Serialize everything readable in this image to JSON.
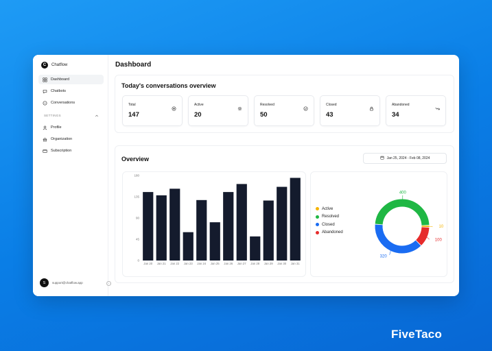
{
  "app": {
    "name": "Chatflow",
    "logo_letter": "C"
  },
  "sidebar": {
    "items": [
      {
        "label": "Dashboard",
        "icon": "grid-icon"
      },
      {
        "label": "Chatbots",
        "icon": "chat-bubble-icon"
      },
      {
        "label": "Conversations",
        "icon": "conversation-icon"
      }
    ],
    "settings_heading": "SETTINGS",
    "settings_items": [
      {
        "label": "Profile",
        "icon": "user-icon"
      },
      {
        "label": "Organization",
        "icon": "building-icon"
      },
      {
        "label": "Subscription",
        "icon": "card-icon"
      }
    ],
    "user": {
      "avatar_letter": "S",
      "email": "support@chatflow.app"
    }
  },
  "header": {
    "title": "Dashboard"
  },
  "overview_today": {
    "title": "Today's conversations overview",
    "stats": [
      {
        "label": "Total",
        "value": "147",
        "icon": "plus-circle-icon"
      },
      {
        "label": "Active",
        "value": "20",
        "icon": "gear-icon"
      },
      {
        "label": "Resolved",
        "value": "50",
        "icon": "check-circle-icon"
      },
      {
        "label": "Closed",
        "value": "43",
        "icon": "lock-icon"
      },
      {
        "label": "Abandoned",
        "value": "34",
        "icon": "trend-down-icon"
      }
    ]
  },
  "overview": {
    "title": "Overview",
    "date_range": "Jan 25, 2024 - Feb 08, 2024"
  },
  "chart_data": [
    {
      "type": "bar",
      "categories": [
        "Jan 20",
        "Jan 21",
        "Jan 22",
        "Jan 23",
        "Jan 24",
        "Jan 25",
        "Jan 26",
        "Jan 27",
        "Jan 28",
        "Jan 29",
        "Jan 30",
        "Jan 31"
      ],
      "values": [
        145,
        138,
        152,
        60,
        128,
        81,
        145,
        162,
        51,
        127,
        156,
        175
      ],
      "yticks": [
        0,
        45,
        90,
        135,
        180
      ],
      "ylim": [
        0,
        180
      ],
      "color": "#141b2d"
    },
    {
      "type": "pie",
      "style": "donut",
      "labels": [
        "Active",
        "Resolved",
        "Closed",
        "Abandoned"
      ],
      "values": [
        10,
        400,
        320,
        100
      ],
      "data_labels": [
        "10",
        "400",
        "320",
        "100"
      ],
      "colors": [
        "#f5b400",
        "#1fb744",
        "#1a6cf2",
        "#e62b2b"
      ]
    }
  ],
  "colors": {
    "accent": "#111111",
    "background": "#0a7ee6"
  },
  "watermark": "FiveTaco"
}
